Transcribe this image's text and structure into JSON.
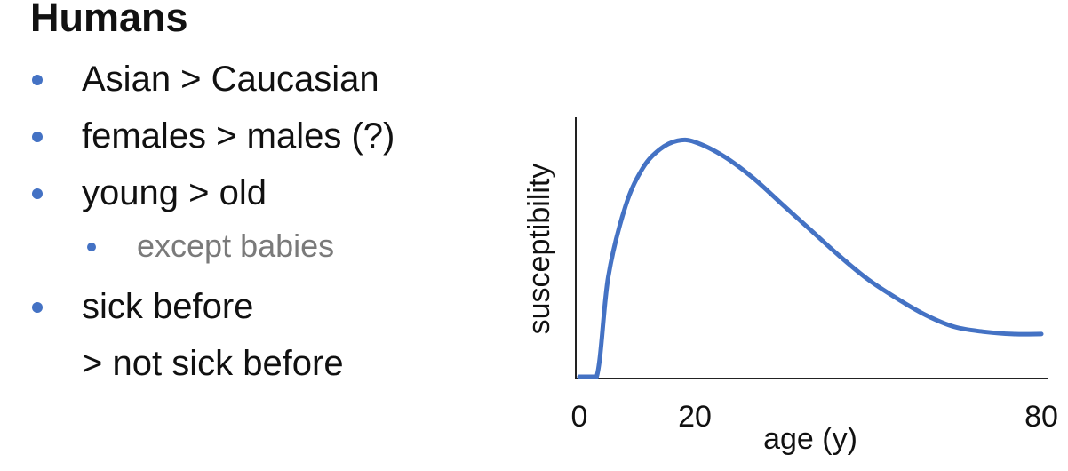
{
  "slide": {
    "title": "Humans",
    "bullets": [
      {
        "text": "Asian > Caucasian",
        "level": 1
      },
      {
        "text": "females > males (?)",
        "level": 1
      },
      {
        "text": "young > old",
        "level": 1
      },
      {
        "text": "except babies",
        "level": 2
      },
      {
        "text": "sick before",
        "level": 1
      },
      {
        "text": "> not sick before",
        "level": 0
      }
    ]
  },
  "chart_data": {
    "type": "line",
    "ylabel": "susceptibility",
    "xlabel": "age (y)",
    "x_ticks": [
      "0",
      "20",
      "80"
    ],
    "x_tick_values": [
      0,
      20,
      80
    ],
    "xlim": [
      0,
      80
    ],
    "ylim": [
      0,
      1
    ],
    "series": [
      {
        "x": [
          0,
          3,
          5,
          8,
          11,
          14,
          17,
          20,
          25,
          30,
          35,
          40,
          45,
          50,
          55,
          60,
          65,
          70,
          75,
          80
        ],
        "y": [
          0,
          0,
          0.42,
          0.72,
          0.88,
          0.96,
          0.995,
          0.99,
          0.93,
          0.84,
          0.73,
          0.62,
          0.51,
          0.41,
          0.33,
          0.26,
          0.21,
          0.19,
          0.18,
          0.18
        ],
        "color": "#4472c4"
      }
    ],
    "axis_color": "#222222",
    "grid": false
  }
}
